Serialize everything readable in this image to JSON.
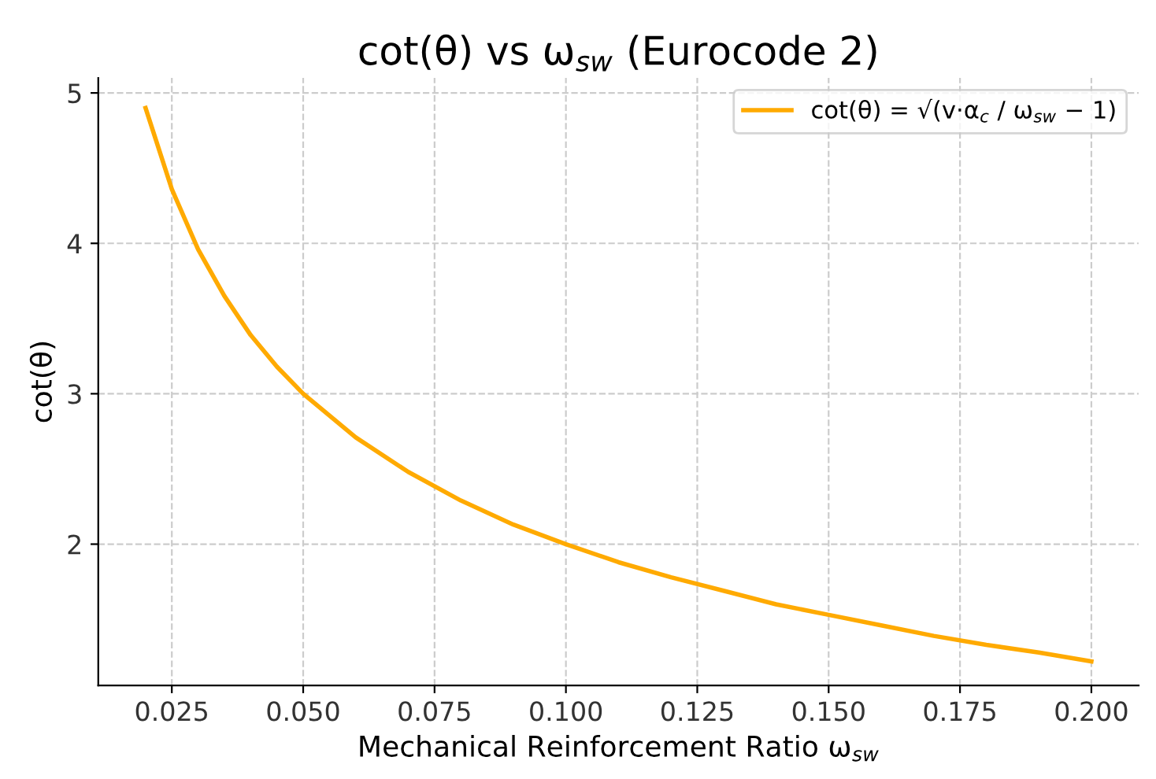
{
  "chart_data": {
    "type": "line",
    "title": "cot(θ) vs ω$_{sw}$ (Eurocode 2)",
    "xlabel": "Mechanical Reinforcement Ratio ω$_{sw}$",
    "ylabel": "cot(θ)",
    "series": [
      {
        "name": "cot(θ) = √(v·α$_{c}$ / ω$_{sw}$ − 1)",
        "color": "#ffaa00",
        "x": [
          0.02,
          0.025,
          0.03,
          0.035,
          0.04,
          0.045,
          0.05,
          0.06,
          0.07,
          0.08,
          0.09,
          0.1,
          0.11,
          0.12,
          0.13,
          0.14,
          0.15,
          0.16,
          0.17,
          0.18,
          0.19,
          0.2
        ],
        "values": [
          4.9,
          4.36,
          3.96,
          3.65,
          3.39,
          3.18,
          3.0,
          2.71,
          2.48,
          2.29,
          2.13,
          2.0,
          1.88,
          1.78,
          1.69,
          1.6,
          1.53,
          1.46,
          1.39,
          1.33,
          1.28,
          1.22
        ]
      }
    ],
    "xlim": [
      0.011,
      0.209
    ],
    "ylim": [
      1.06,
      5.1
    ],
    "xticks": [
      {
        "value": 0.025,
        "label": "0.025"
      },
      {
        "value": 0.05,
        "label": "0.050"
      },
      {
        "value": 0.075,
        "label": "0.075"
      },
      {
        "value": 0.1,
        "label": "0.100"
      },
      {
        "value": 0.125,
        "label": "0.125"
      },
      {
        "value": 0.15,
        "label": "0.150"
      },
      {
        "value": 0.175,
        "label": "0.175"
      },
      {
        "value": 0.2,
        "label": "0.200"
      }
    ],
    "yticks": [
      2,
      3,
      4,
      5
    ],
    "grid": true,
    "legend": "top right",
    "line_style": "solid",
    "marker": "none"
  }
}
